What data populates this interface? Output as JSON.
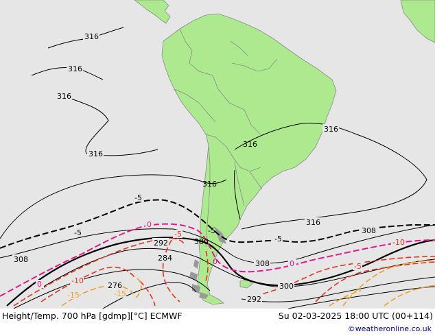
{
  "footer": {
    "title": "Height/Temp. 700 hPa [gdmp][°C] ECMWF",
    "valid_time": "Su 02-03-2025 18:00 UTC (00+114)",
    "credit": "©weatheronline.co.uk"
  },
  "map": {
    "height_contour_labels": [
      "316",
      "316",
      "316",
      "316",
      "316",
      "316",
      "316",
      "316",
      "308",
      "308",
      "308",
      "300",
      "300",
      "292",
      "292",
      "284",
      "276"
    ],
    "temperature_labels": [
      "-5",
      "-5",
      "-5",
      "-5",
      "0",
      "0",
      "0",
      "0",
      "-5",
      "-5",
      "-10",
      "-10",
      "-15",
      "-15"
    ],
    "colors": {
      "ocean": "#e6e6e6",
      "land": "#adea8f",
      "height_contour": "#000000",
      "isotherm_zero": "#e0188c",
      "isotherm_negative": "#e8301e",
      "isotherm_cold": "#f0a020"
    }
  }
}
